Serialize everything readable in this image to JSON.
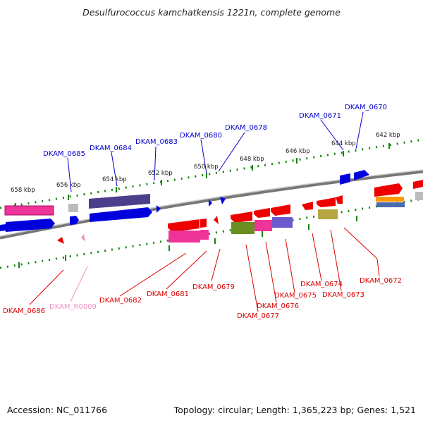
{
  "title": "Desulfurococcus kamchatkensis 1221n, complete genome",
  "footer": {
    "accession": "Accession: NC_011766",
    "summary": "Topology: circular; Length: 1,365,223 bp; Genes: 1,521"
  },
  "ticks": [
    "658 kbp",
    "656 kbp",
    "654 kbp",
    "652 kbp",
    "650 kbp",
    "648 kbp",
    "646 kbp",
    "644 kbp",
    "642 kbp"
  ],
  "genes_top": [
    "DKAM_0685",
    "DKAM_0684",
    "DKAM_0683",
    "DKAM_0680",
    "DKAM_0678",
    "DKAM_0671",
    "DKAM_0670"
  ],
  "genes_bottom": [
    "DKAM_0686",
    "DKAM_R0009",
    "DKAM_0682",
    "DKAM_0681",
    "DKAM_0679",
    "DKAM_0677",
    "DKAM_0676",
    "DKAM_0675",
    "DKAM_0674",
    "DKAM_0673",
    "DKAM_0672"
  ],
  "colors": {
    "forward": "#0000dd",
    "reverse": "#ee0000",
    "rna": "#f090c0",
    "backbone": "#888888",
    "ruler": "#118811"
  }
}
